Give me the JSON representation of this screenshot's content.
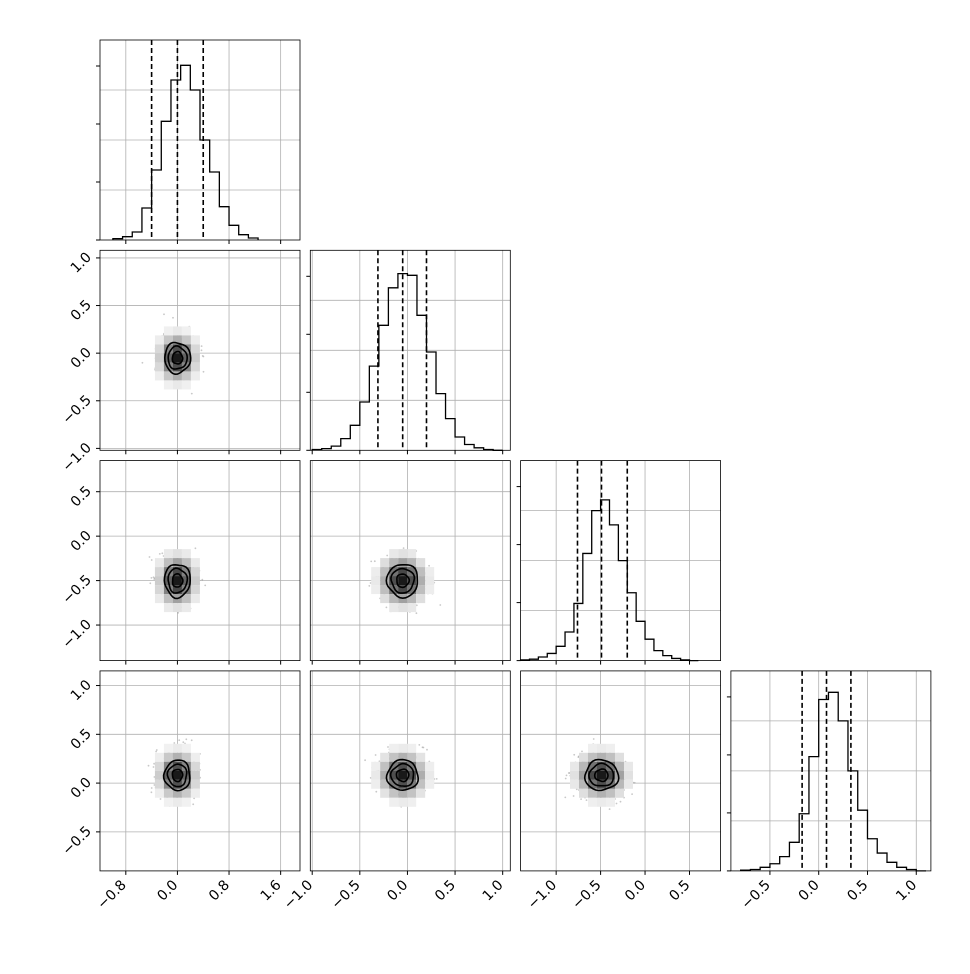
{
  "chart_data": {
    "type": "corner",
    "title": "",
    "parameters": [
      "",
      "",
      "",
      ""
    ],
    "grid": true,
    "quantile_lines": "dashed",
    "ranges": [
      [
        -1.2,
        1.9
      ],
      [
        -1.02,
        1.08
      ],
      [
        -1.4,
        0.85
      ],
      [
        -0.9,
        1.15
      ]
    ],
    "tick_values": [
      [
        -0.8,
        0.0,
        0.8,
        1.6
      ],
      [
        -1.0,
        -0.5,
        0.0,
        0.5,
        1.0
      ],
      [
        -1.0,
        -0.5,
        0.0,
        0.5
      ],
      [
        -0.5,
        0.0,
        0.5,
        1.0
      ]
    ],
    "tick_labels": [
      [
        "−0.8",
        "0.0",
        "0.8",
        "1.6"
      ],
      [
        "−1.0",
        "−0.5",
        "0.0",
        "0.5",
        "1.0"
      ],
      [
        "−1.0",
        "−0.5",
        "0.0",
        "0.5"
      ],
      [
        "−0.5",
        "0.0",
        "0.5",
        "1.0"
      ]
    ],
    "histograms": [
      {
        "param_index": 0,
        "bin_edges": [
          -1.0,
          -0.85,
          -0.7,
          -0.55,
          -0.4,
          -0.25,
          -0.1,
          0.05,
          0.2,
          0.35,
          0.5,
          0.65,
          0.8,
          0.95,
          1.1,
          1.25
        ],
        "counts": [
          2,
          5,
          12,
          48,
          105,
          178,
          240,
          262,
          225,
          150,
          102,
          50,
          22,
          8,
          3
        ],
        "quantiles": [
          -0.4,
          0.0,
          0.4
        ],
        "ylim": [
          0,
          300
        ]
      },
      {
        "param_index": 1,
        "bin_edges": [
          -1.0,
          -0.9,
          -0.8,
          -0.7,
          -0.6,
          -0.5,
          -0.4,
          -0.3,
          -0.2,
          -0.1,
          0.0,
          0.1,
          0.2,
          0.3,
          0.4,
          0.5,
          0.6,
          0.7,
          0.8,
          0.9,
          1.0
        ],
        "counts": [
          1,
          2,
          5,
          14,
          30,
          58,
          101,
          150,
          195,
          212,
          210,
          162,
          118,
          68,
          38,
          16,
          7,
          3,
          1,
          0
        ],
        "quantiles": [
          -0.31,
          -0.05,
          0.2
        ],
        "ylim": [
          0,
          240
        ]
      },
      {
        "param_index": 2,
        "bin_edges": [
          -1.4,
          -1.3,
          -1.2,
          -1.1,
          -1.0,
          -0.9,
          -0.8,
          -0.7,
          -0.6,
          -0.5,
          -0.4,
          -0.3,
          -0.2,
          -0.1,
          0.0,
          0.1,
          0.2,
          0.3,
          0.4,
          0.5,
          0.6
        ],
        "counts": [
          1,
          2,
          5,
          10,
          20,
          40,
          80,
          150,
          210,
          225,
          190,
          140,
          95,
          55,
          30,
          14,
          7,
          3,
          1,
          0
        ],
        "quantiles": [
          -0.76,
          -0.49,
          -0.2
        ],
        "ylim": [
          0,
          280
        ]
      },
      {
        "param_index": 3,
        "bin_edges": [
          -0.8,
          -0.7,
          -0.6,
          -0.5,
          -0.4,
          -0.3,
          -0.2,
          -0.1,
          0.0,
          0.1,
          0.2,
          0.3,
          0.4,
          0.5,
          0.6,
          0.7,
          0.8,
          0.9,
          1.0,
          1.1
        ],
        "counts": [
          1,
          2,
          5,
          10,
          20,
          40,
          80,
          160,
          240,
          250,
          210,
          140,
          85,
          45,
          25,
          12,
          5,
          2,
          0
        ],
        "quantiles": [
          -0.17,
          0.08,
          0.33
        ],
        "ylim": [
          0,
          280
        ]
      }
    ],
    "scatter_pairs": [
      {
        "row": 1,
        "col": 0,
        "center": [
          0.0,
          -0.05
        ],
        "spread": [
          0.32,
          0.26
        ],
        "contour_radii": [
          0.27,
          0.5,
          0.68
        ]
      },
      {
        "row": 2,
        "col": 0,
        "center": [
          0.0,
          -0.5
        ],
        "spread": [
          0.32,
          0.3
        ],
        "contour_radii": [
          0.27,
          0.5,
          0.68
        ]
      },
      {
        "row": 2,
        "col": 1,
        "center": [
          -0.05,
          -0.5
        ],
        "spread": [
          0.26,
          0.3
        ],
        "contour_radii": [
          0.27,
          0.5,
          0.68
        ]
      },
      {
        "row": 3,
        "col": 0,
        "center": [
          0.0,
          0.08
        ],
        "spread": [
          0.32,
          0.25
        ],
        "contour_radii": [
          0.27,
          0.5,
          0.68
        ]
      },
      {
        "row": 3,
        "col": 1,
        "center": [
          -0.05,
          0.08
        ],
        "spread": [
          0.26,
          0.25
        ],
        "contour_radii": [
          0.27,
          0.5,
          0.68
        ]
      },
      {
        "row": 3,
        "col": 2,
        "center": [
          -0.49,
          0.08
        ],
        "spread": [
          0.3,
          0.25
        ],
        "contour_radii": [
          0.27,
          0.5,
          0.68
        ]
      }
    ]
  }
}
